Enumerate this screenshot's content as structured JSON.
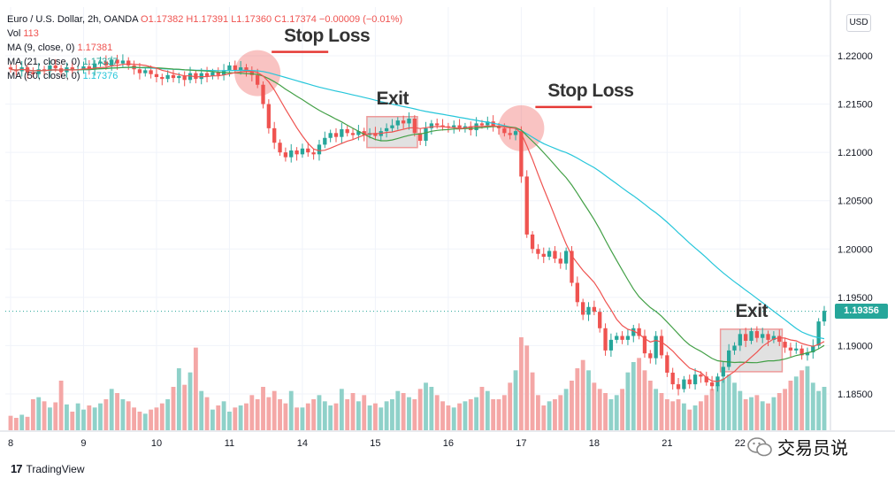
{
  "header": {
    "symbol_line": "Euro / U.S. Dollar, 2h, OANDA",
    "open": "O1.17382",
    "high": "H1.17391",
    "low": "L1.17360",
    "close": "C1.17374",
    "change": "−0.00009 (−0.01%)",
    "vol_label": "Vol",
    "vol_value": "113",
    "ma9_label": "MA (9, close, 0)",
    "ma9_value": "1.17381",
    "ma21_label": "MA (21, close, 0)",
    "ma21_value": "1.17337",
    "ma50_label": "MA (50, close, 0)",
    "ma50_value": "1.17376"
  },
  "currency": "USD",
  "last_price": "1.19356",
  "brand": "TradingView",
  "watermark_text": "交易员说",
  "colors": {
    "up": "#26a69a",
    "down": "#ef5350",
    "vol_up": "#8fd1c9",
    "vol_down": "#f4a7a6",
    "ma9": "#ef5350",
    "ma21": "#43a047",
    "ma50": "#26c6da",
    "grid": "#f0f3fa",
    "annotation_circle": "rgba(239,83,80,0.35)",
    "annotation_box": "rgba(200,200,200,0.55)"
  },
  "annotations": [
    {
      "text": "Stop Loss",
      "kind": "stop",
      "index": 44,
      "price": 1.2182
    },
    {
      "text": "Exit",
      "kind": "exit",
      "from": 64,
      "to": 72,
      "hi": 1.2137,
      "lo": 1.2105
    },
    {
      "text": "Stop Loss",
      "kind": "stop",
      "index": 91,
      "price": 1.2125
    },
    {
      "text": "Exit",
      "kind": "exit",
      "from": 127,
      "to": 137,
      "hi": 1.1917,
      "lo": 1.1873
    }
  ],
  "chart_data": {
    "type": "candlestick",
    "title": "Euro / U.S. Dollar, 2h, OANDA",
    "xlabel": "",
    "ylabel": "",
    "ylim": [
      1.18,
      1.225
    ],
    "y_ticks": [
      "1.22000",
      "1.21500",
      "1.21000",
      "1.20500",
      "1.20000",
      "1.19500",
      "1.19000",
      "1.18500"
    ],
    "x_ticks": [
      {
        "label": "8",
        "index": 0
      },
      {
        "label": "9",
        "index": 13
      },
      {
        "label": "10",
        "index": 26
      },
      {
        "label": "11",
        "index": 39
      },
      {
        "label": "14",
        "index": 52
      },
      {
        "label": "15",
        "index": 65
      },
      {
        "label": "16",
        "index": 78
      },
      {
        "label": "17",
        "index": 91
      },
      {
        "label": "18",
        "index": 104
      },
      {
        "label": "21",
        "index": 117
      },
      {
        "label": "22",
        "index": 130
      }
    ],
    "close": [
      1.2186,
      1.2184,
      1.2188,
      1.2183,
      1.2181,
      1.2186,
      1.2184,
      1.219,
      1.2187,
      1.2183,
      1.2188,
      1.2185,
      1.2186,
      1.2189,
      1.2186,
      1.2192,
      1.2194,
      1.219,
      1.2196,
      1.2192,
      1.2195,
      1.219,
      1.2186,
      1.2182,
      1.2185,
      1.2181,
      1.2178,
      1.2176,
      1.218,
      1.2177,
      1.2179,
      1.2175,
      1.2182,
      1.2176,
      1.2182,
      1.2179,
      1.2183,
      1.218,
      1.2185,
      1.219,
      1.2185,
      1.2188,
      1.2184,
      1.218,
      1.217,
      1.215,
      1.2125,
      1.211,
      1.21,
      1.2095,
      1.2102,
      1.2098,
      1.2104,
      1.21,
      1.2098,
      1.2108,
      1.2115,
      1.212,
      1.2116,
      1.2124,
      1.212,
      1.2118,
      1.2122,
      1.2118,
      1.212,
      1.2117,
      1.2122,
      1.2125,
      1.2128,
      1.2133,
      1.213,
      1.2135,
      1.212,
      1.2112,
      1.2125,
      1.213,
      1.2128,
      1.2127,
      1.2126,
      1.2128,
      1.2125,
      1.2127,
      1.2123,
      1.213,
      1.2128,
      1.2132,
      1.2127,
      1.2125,
      1.212,
      1.2118,
      1.2122,
      1.2075,
      1.2015,
      1.2,
      1.1995,
      1.1992,
      1.1998,
      1.199,
      1.1985,
      1.1998,
      1.1965,
      1.1945,
      1.1932,
      1.194,
      1.1935,
      1.1918,
      1.1895,
      1.1906,
      1.191,
      1.1906,
      1.191,
      1.1918,
      1.191,
      1.1892,
      1.1887,
      1.191,
      1.189,
      1.1872,
      1.186,
      1.1855,
      1.1865,
      1.186,
      1.187,
      1.1868,
      1.1862,
      1.1858,
      1.1868,
      1.1878,
      1.1895,
      1.19,
      1.1912,
      1.1905,
      1.1915,
      1.1908,
      1.1912,
      1.1906,
      1.191,
      1.1904,
      1.1898,
      1.1895,
      1.1897,
      1.189,
      1.1893,
      1.19,
      1.1925,
      1.1936
    ],
    "series": [
      {
        "name": "Vol",
        "values": [
          14,
          12,
          15,
          13,
          30,
          32,
          28,
          22,
          27,
          48,
          25,
          18,
          26,
          20,
          24,
          22,
          26,
          30,
          40,
          36,
          30,
          28,
          22,
          18,
          16,
          20,
          22,
          26,
          30,
          42,
          60,
          44,
          56,
          80,
          38,
          32,
          20,
          24,
          28,
          18,
          22,
          24,
          26,
          34,
          30,
          42,
          32,
          38,
          30,
          26,
          38,
          22,
          22,
          26,
          30,
          34,
          28,
          24,
          26,
          40,
          30,
          36,
          28,
          34,
          24,
          26,
          22,
          28,
          30,
          38,
          36,
          32,
          30,
          40,
          46,
          42,
          34,
          28,
          24,
          22,
          26,
          28,
          30,
          32,
          42,
          38,
          30,
          30,
          34,
          46,
          58,
          90,
          82,
          56,
          34,
          24,
          28,
          30,
          34,
          40,
          48,
          60,
          68,
          58,
          46,
          40,
          36,
          30,
          34,
          40,
          56,
          66,
          70,
          58,
          48,
          40,
          36,
          30,
          28,
          30,
          26,
          20,
          24,
          28,
          34,
          40,
          44,
          50,
          54,
          46,
          38,
          30,
          32,
          34,
          28,
          26,
          32,
          36,
          40,
          48,
          52,
          58,
          62,
          46,
          38,
          42
        ]
      },
      {
        "name": "MA (9, close, 0)"
      },
      {
        "name": "MA (21, close, 0)"
      },
      {
        "name": "MA (50, close, 0)"
      }
    ],
    "ma9_label": "MA (9, close, 0)",
    "ma21_label": "MA (21, close, 0)",
    "ma50_label": "MA (50, close, 0)",
    "legend_position": "top-left",
    "grid": true
  }
}
